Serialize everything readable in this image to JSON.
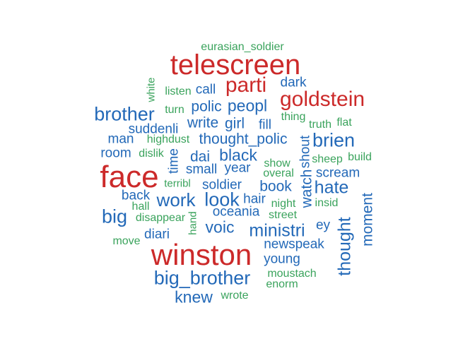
{
  "colors": {
    "red": "#cc2a2a",
    "blue": "#2369b8",
    "green": "#3aa35c"
  },
  "words": {
    "eurasian_soldier": "eurasian_soldier",
    "telescreen": "telescreen",
    "parti": "parti",
    "goldstein": "goldstein",
    "dark": "dark",
    "white": "white",
    "listen": "listen",
    "call": "call",
    "brother": "brother",
    "turn": "turn",
    "polic": "polic",
    "peopl": "peopl",
    "thing": "thing",
    "truth": "truth",
    "flat": "flat",
    "suddenli": "suddenli",
    "write": "write",
    "girl": "girl",
    "fill": "fill",
    "man": "man",
    "highdust": "highdust",
    "thought_polic": "thought_polic",
    "brien": "brien",
    "room": "room",
    "dislik": "dislik",
    "dai": "dai",
    "black": "black",
    "shout": "shout",
    "sheep": "sheep",
    "build": "build",
    "face": "face",
    "time": "time",
    "small": "small",
    "year": "year",
    "show": "show",
    "overal": "overal",
    "scream": "scream",
    "terribl": "terribl",
    "soldier": "soldier",
    "book": "book",
    "watch": "watch",
    "hate": "hate",
    "back": "back",
    "work": "work",
    "look": "look",
    "hair": "hair",
    "night": "night",
    "insid": "insid",
    "moment": "moment",
    "hall": "hall",
    "big": "big",
    "oceania": "oceania",
    "street": "street",
    "disappear": "disappear",
    "hand": "hand",
    "voic": "voic",
    "ministri": "ministri",
    "ey": "ey",
    "thought": "thought",
    "diari": "diari",
    "move": "move",
    "winston": "winston",
    "newspeak": "newspeak",
    "young": "young",
    "big_brother": "big_brother",
    "moustach": "moustach",
    "enorm": "enorm",
    "knew": "knew",
    "wrote": "wrote"
  }
}
